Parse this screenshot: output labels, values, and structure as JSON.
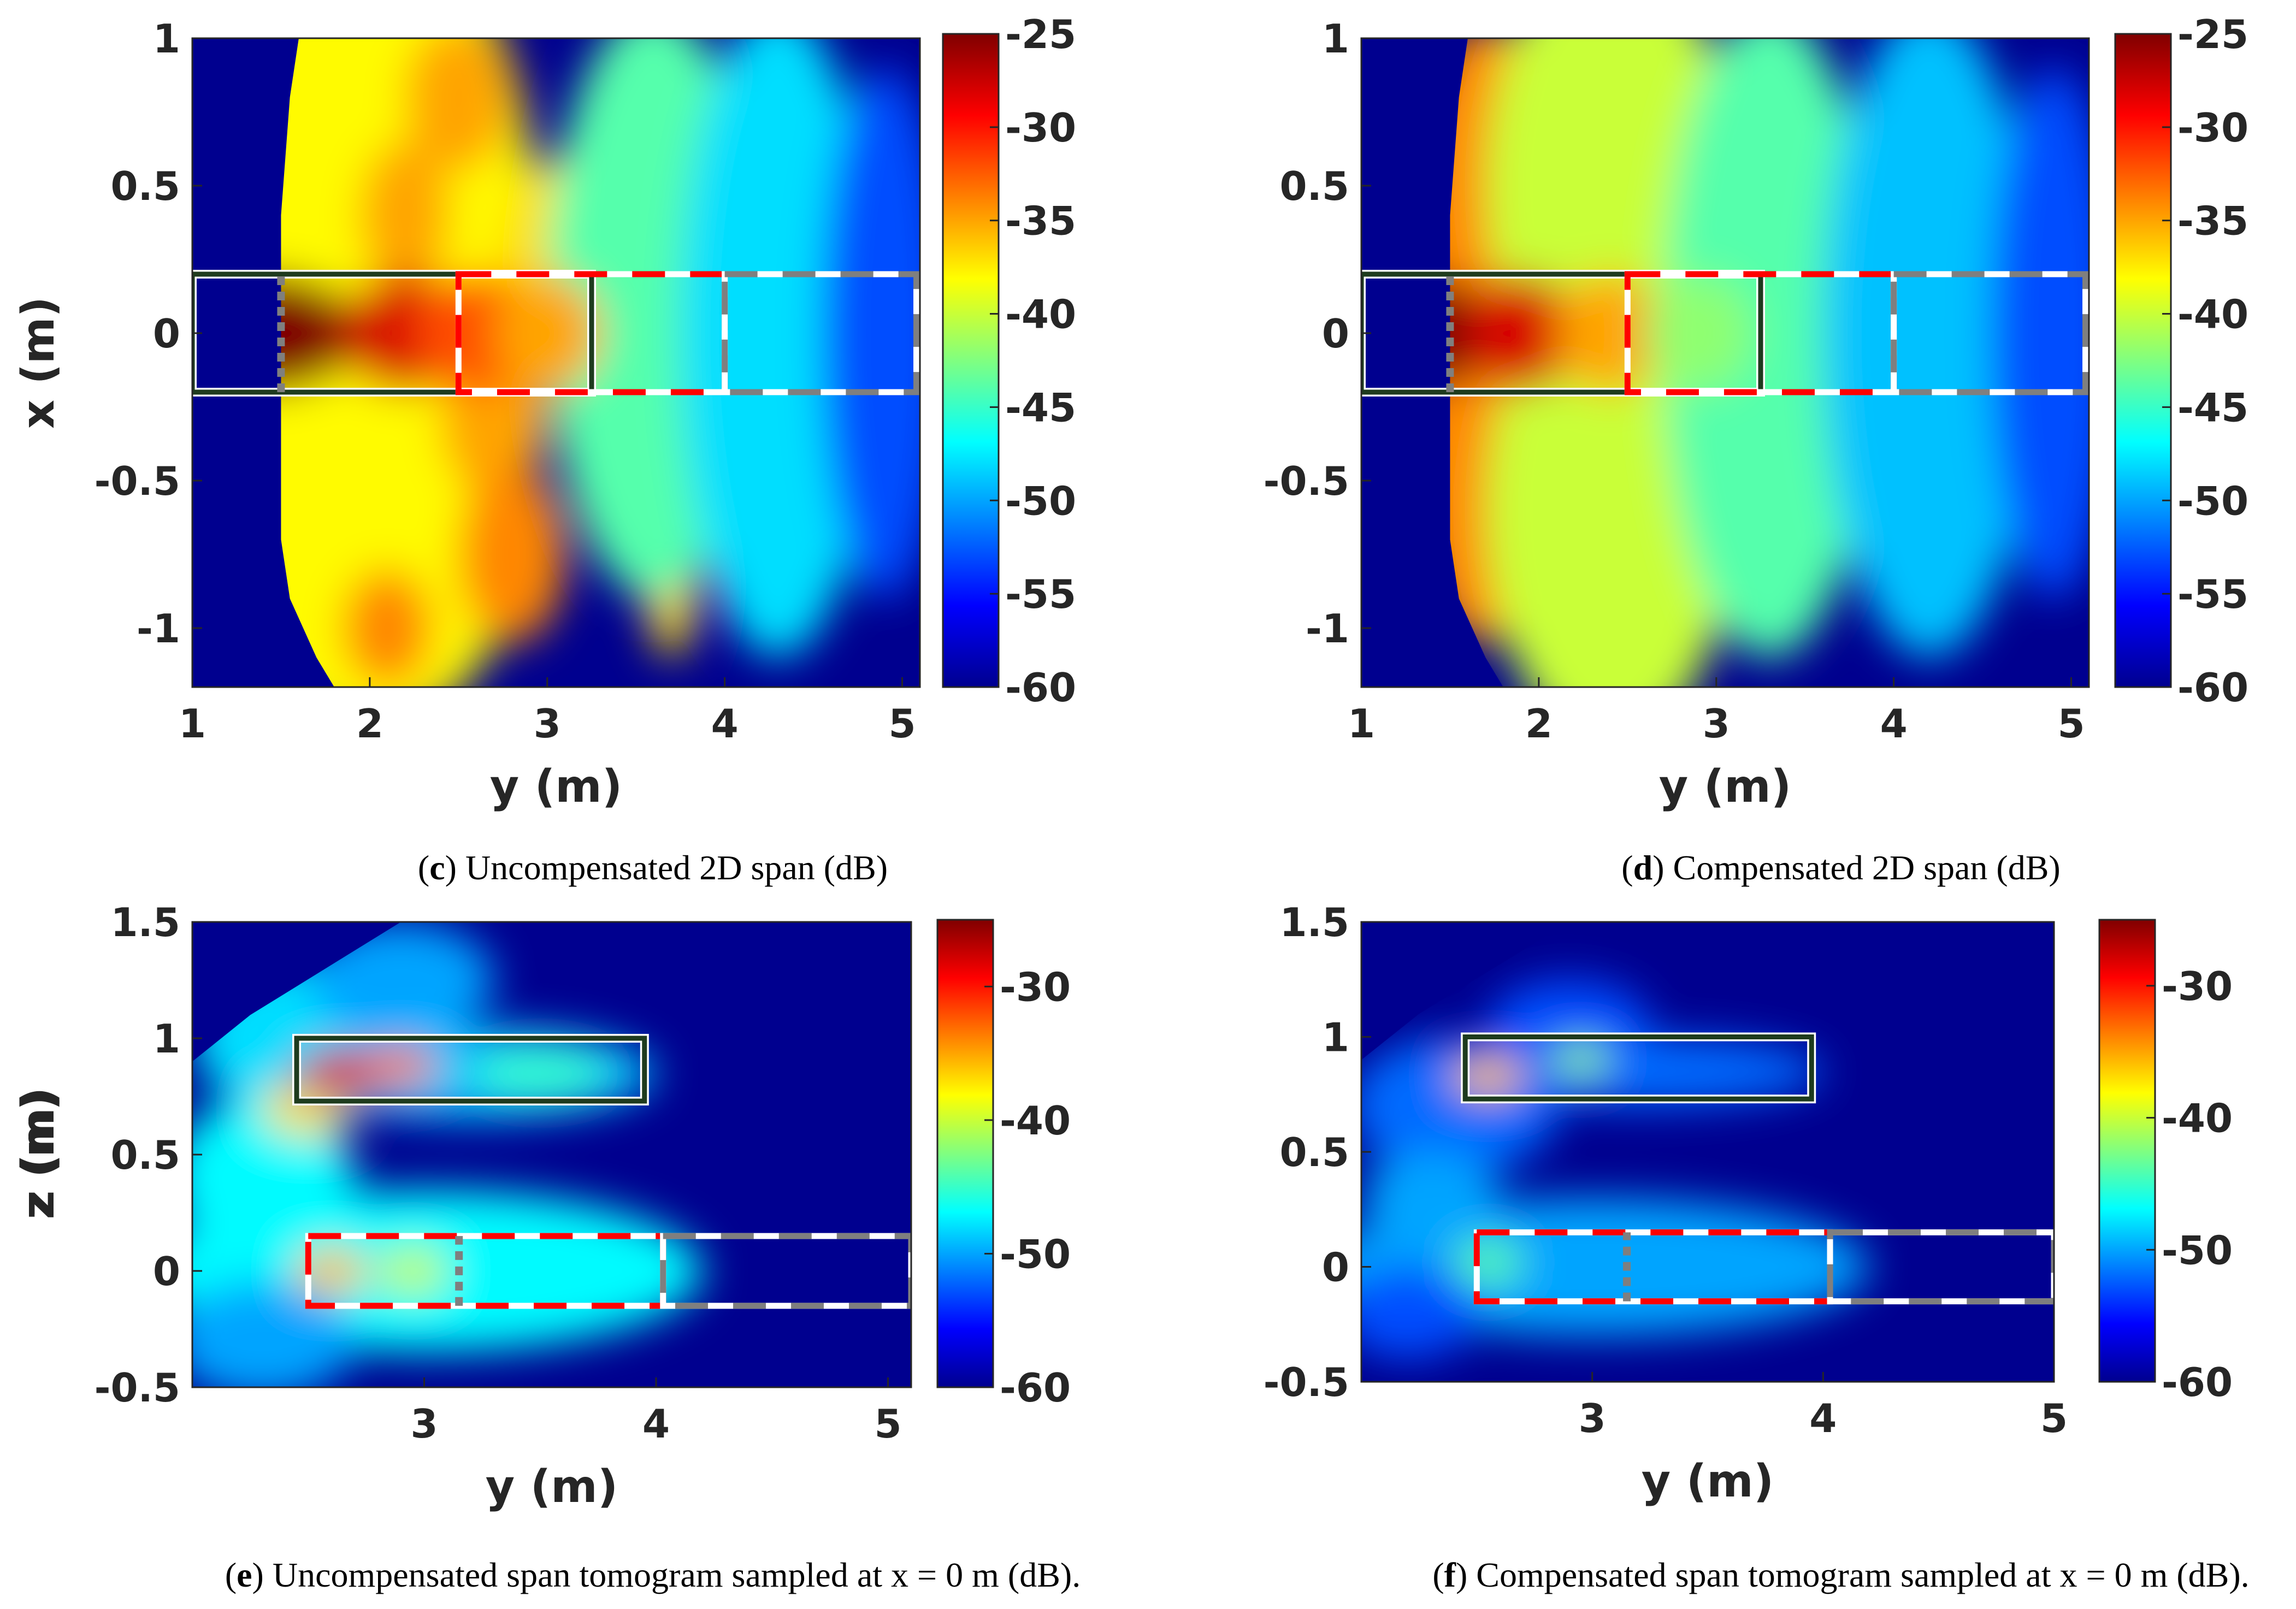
{
  "colormap": {
    "name": "jet",
    "stops": [
      "#00008f",
      "#0000ff",
      "#0080ff",
      "#00ffff",
      "#80ff80",
      "#ffff00",
      "#ff8000",
      "#ff0000",
      "#800000"
    ]
  },
  "box_colors": {
    "solid_outer": "#1e3b1e",
    "solid_inner": "#ffffff",
    "dash_red": "#ff0000",
    "dash_gray": "#7f7f7f",
    "dash_white": "#ffffff"
  },
  "chart_data": [
    {
      "id": "c",
      "type": "heatmap",
      "caption_label": "c",
      "caption_text": " Uncompensated 2D span (dB)",
      "xlabel": "y (m)",
      "ylabel": "x (m)",
      "xlim": [
        1,
        5.1
      ],
      "ylim": [
        -1.2,
        1
      ],
      "xticks": [
        "1",
        "2",
        "3",
        "4",
        "5"
      ],
      "yticks": [
        "1",
        "0.5",
        "0",
        "-0.5",
        "-1"
      ],
      "cb_range": [
        -60,
        -25
      ],
      "cb_ticks": [
        "-25",
        "-30",
        "-35",
        "-40",
        "-45",
        "-50",
        "-55",
        "-60"
      ],
      "background_db": -60,
      "fan": [
        [
          1.6,
          1
        ],
        [
          1.55,
          0.8
        ],
        [
          1.5,
          0.4
        ],
        [
          1.5,
          -0.6
        ],
        [
          1.5,
          -0.7
        ],
        [
          1.55,
          -0.9
        ],
        [
          1.7,
          -1.1
        ],
        [
          1.8,
          -1.2
        ],
        [
          5.1,
          -1.2
        ],
        [
          5.1,
          1
        ],
        [
          1.9,
          1
        ]
      ],
      "blobs": [
        {
          "y": 1.0,
          "x": 0,
          "ry": 0.05,
          "rx": 0.05,
          "db": -38
        },
        {
          "y": 2.0,
          "x": 0.55,
          "ry": 0.9,
          "rx": 0.8,
          "db": -38
        },
        {
          "y": 2.0,
          "x": -0.55,
          "ry": 0.9,
          "rx": 0.8,
          "db": -38
        },
        {
          "y": 2.5,
          "x": 0.8,
          "ry": 0.3,
          "rx": 0.25,
          "db": -35
        },
        {
          "y": 2.2,
          "x": 0.4,
          "ry": 0.25,
          "rx": 0.25,
          "db": -35
        },
        {
          "y": 2.7,
          "x": -0.3,
          "ry": 0.3,
          "rx": 0.25,
          "db": -35
        },
        {
          "y": 2.8,
          "x": -0.75,
          "ry": 0.3,
          "rx": 0.3,
          "db": -34
        },
        {
          "y": 2.1,
          "x": -1.0,
          "ry": 0.25,
          "rx": 0.2,
          "db": -34
        },
        {
          "y": 3.7,
          "x": -0.8,
          "ry": 0.15,
          "rx": 0.3,
          "db": -37
        },
        {
          "y": 3.1,
          "x": 0.2,
          "ry": 0.4,
          "rx": 0.4,
          "db": -37
        },
        {
          "y": 3.6,
          "x": 0.1,
          "ry": 0.6,
          "rx": 1.0,
          "db": -44
        },
        {
          "y": 4.3,
          "x": 0,
          "ry": 0.55,
          "rx": 1.1,
          "db": -48
        },
        {
          "y": 4.9,
          "x": 0,
          "ry": 0.35,
          "rx": 0.9,
          "db": -53
        },
        {
          "y": 1.4,
          "x": 0,
          "ry": 0.55,
          "rx": 0.2,
          "db": -25
        },
        {
          "y": 2.2,
          "x": 0,
          "ry": 0.35,
          "rx": 0.2,
          "db": -28
        },
        {
          "y": 2.6,
          "x": 0,
          "ry": 0.35,
          "rx": 0.2,
          "db": -32
        },
        {
          "y": 3.0,
          "x": 0,
          "ry": 0.3,
          "rx": 0.2,
          "db": -35
        }
      ],
      "boxes": [
        {
          "kind": "solid",
          "y0": 1.0,
          "y1": 3.25,
          "x0": -0.2,
          "x1": 0.2
        },
        {
          "kind": "red",
          "y0": 2.5,
          "y1": 4.0,
          "x0": -0.2,
          "x1": 0.2
        },
        {
          "kind": "gray",
          "y0": 4.0,
          "y1": 5.08,
          "x0": -0.2,
          "x1": 0.2
        }
      ],
      "markers": [
        {
          "y": 1.5,
          "x0": -0.2,
          "x1": 0.2
        }
      ]
    },
    {
      "id": "d",
      "type": "heatmap",
      "caption_label": "d",
      "caption_text": " Compensated 2D span (dB)",
      "xlabel": "y (m)",
      "ylabel": "x (m)",
      "xlim": [
        1,
        5.1
      ],
      "ylim": [
        -1.2,
        1
      ],
      "xticks": [
        "1",
        "2",
        "3",
        "4",
        "5"
      ],
      "yticks": [
        "1",
        "0.5",
        "0",
        "-0.5",
        "-1"
      ],
      "cb_range": [
        -60,
        -25
      ],
      "cb_ticks": [
        "-25",
        "-30",
        "-35",
        "-40",
        "-45",
        "-50",
        "-55",
        "-60"
      ],
      "background_db": -60,
      "fan": [
        [
          1.6,
          1
        ],
        [
          1.55,
          0.8
        ],
        [
          1.5,
          0.4
        ],
        [
          1.5,
          -0.6
        ],
        [
          1.5,
          -0.7
        ],
        [
          1.55,
          -0.9
        ],
        [
          1.7,
          -1.1
        ],
        [
          1.8,
          -1.2
        ],
        [
          5.1,
          -1.2
        ],
        [
          5.1,
          1
        ],
        [
          1.9,
          1
        ]
      ],
      "blobs": [
        {
          "y": 1.7,
          "x": 0.45,
          "ry": 0.45,
          "rx": 0.6,
          "db": -34
        },
        {
          "y": 1.7,
          "x": -0.45,
          "ry": 0.45,
          "rx": 0.6,
          "db": -34
        },
        {
          "y": 2.4,
          "x": 0.5,
          "ry": 0.7,
          "rx": 0.8,
          "db": -40
        },
        {
          "y": 2.4,
          "x": -0.6,
          "ry": 0.7,
          "rx": 0.8,
          "db": -40
        },
        {
          "y": 3.3,
          "x": 0,
          "ry": 0.6,
          "rx": 1.1,
          "db": -44
        },
        {
          "y": 4.2,
          "x": 0,
          "ry": 0.6,
          "rx": 1.1,
          "db": -49
        },
        {
          "y": 4.9,
          "x": 0,
          "ry": 0.35,
          "rx": 0.9,
          "db": -53
        },
        {
          "y": 1.3,
          "x": 0,
          "ry": 0.45,
          "rx": 0.2,
          "db": -25
        },
        {
          "y": 1.9,
          "x": 0,
          "ry": 0.3,
          "rx": 0.2,
          "db": -28
        },
        {
          "y": 2.4,
          "x": 0,
          "ry": 0.3,
          "rx": 0.2,
          "db": -35
        },
        {
          "y": 2.9,
          "x": 0,
          "ry": 0.3,
          "rx": 0.2,
          "db": -42
        }
      ],
      "boxes": [
        {
          "kind": "solid",
          "y0": 1.0,
          "y1": 3.25,
          "x0": -0.2,
          "x1": 0.2
        },
        {
          "kind": "red",
          "y0": 2.5,
          "y1": 4.0,
          "x0": -0.2,
          "x1": 0.2
        },
        {
          "kind": "gray",
          "y0": 4.0,
          "y1": 5.08,
          "x0": -0.2,
          "x1": 0.2
        }
      ],
      "markers": [
        {
          "y": 1.5,
          "x0": -0.2,
          "x1": 0.2
        }
      ]
    },
    {
      "id": "e",
      "type": "heatmap",
      "caption_label": "e",
      "caption_text": ") Uncompensated span tomogram sampled at x = 0 m (dB).",
      "xlabel": "y (m)",
      "ylabel": "z (m)",
      "xlim": [
        2.0,
        5.1
      ],
      "ylim": [
        -0.5,
        1.5
      ],
      "xticks": [
        "3",
        "4",
        "5"
      ],
      "yticks": [
        "1.5",
        "1",
        "0.5",
        "0",
        "-0.5"
      ],
      "cb_range": [
        -60,
        -25
      ],
      "cb_ticks": [
        "-30",
        "-40",
        "-50",
        "-60"
      ],
      "background_db": -60,
      "fan": [
        [
          2.0,
          -0.5
        ],
        [
          2.0,
          0.9
        ],
        [
          2.25,
          1.1
        ],
        [
          2.9,
          1.5
        ],
        [
          5.1,
          1.5
        ],
        [
          5.1,
          -0.5
        ]
      ],
      "blobs": [
        {
          "y": 2.5,
          "x": 1.0,
          "ry": 0.5,
          "rx": 0.35,
          "db": -48
        },
        {
          "y": 2.9,
          "x": 1.25,
          "ry": 0.4,
          "rx": 0.25,
          "db": -50
        },
        {
          "y": 2.3,
          "x": 0.4,
          "ry": 0.4,
          "rx": 0.35,
          "db": -47
        },
        {
          "y": 2.5,
          "x": 0.7,
          "ry": 0.2,
          "rx": 0.12,
          "db": -37
        },
        {
          "y": 3.2,
          "x": 0.85,
          "ry": 0.8,
          "rx": 0.2,
          "db": -49
        },
        {
          "y": 2.65,
          "x": 0.85,
          "ry": 0.2,
          "rx": 0.1,
          "db": -28
        },
        {
          "y": 2.9,
          "x": 0.88,
          "ry": 0.15,
          "rx": 0.08,
          "db": -33
        },
        {
          "y": 3.5,
          "x": 0.85,
          "ry": 0.3,
          "rx": 0.1,
          "db": -45
        },
        {
          "y": 3.0,
          "x": 0.0,
          "ry": 1.2,
          "rx": 0.35,
          "db": -47
        },
        {
          "y": 2.6,
          "x": 0.0,
          "ry": 0.15,
          "rx": 0.1,
          "db": -36
        },
        {
          "y": 2.95,
          "x": 0.0,
          "ry": 0.15,
          "rx": 0.1,
          "db": -40
        },
        {
          "y": 2.3,
          "x": -0.3,
          "ry": 0.4,
          "rx": 0.25,
          "db": -50
        }
      ],
      "boxes": [
        {
          "kind": "solid",
          "y0": 2.45,
          "y1": 3.95,
          "x0": 0.73,
          "x1": 1.0
        },
        {
          "kind": "red",
          "y0": 2.5,
          "y1": 4.03,
          "x0": -0.15,
          "x1": 0.15
        },
        {
          "kind": "gray",
          "y0": 4.03,
          "y1": 5.1,
          "x0": -0.15,
          "x1": 0.15
        }
      ],
      "markers": [
        {
          "y": 3.15,
          "x0": -0.15,
          "x1": 0.15
        }
      ]
    },
    {
      "id": "f",
      "type": "heatmap",
      "caption_label": "f",
      "caption_text": ") Compensated span tomogram sampled at x = 0 m (dB).",
      "xlabel": "y (m)",
      "ylabel": "z (m)",
      "xlim": [
        2.0,
        5.0
      ],
      "ylim": [
        -0.5,
        1.5
      ],
      "xticks": [
        "3",
        "4",
        "5"
      ],
      "yticks": [
        "1.5",
        "1",
        "0.5",
        "0",
        "-0.5"
      ],
      "cb_range": [
        -60,
        -25
      ],
      "cb_ticks": [
        "-30",
        "-40",
        "-50",
        "-60"
      ],
      "background_db": -60,
      "fan": [
        [
          2.0,
          -0.5
        ],
        [
          2.0,
          0.9
        ],
        [
          2.25,
          1.1
        ],
        [
          2.9,
          1.5
        ],
        [
          5.0,
          1.5
        ],
        [
          5.0,
          -0.5
        ]
      ],
      "blobs": [
        {
          "y": 2.4,
          "x": 0.7,
          "ry": 0.45,
          "rx": 0.3,
          "db": -52
        },
        {
          "y": 2.9,
          "x": 1.05,
          "ry": 0.35,
          "rx": 0.2,
          "db": -53
        },
        {
          "y": 3.2,
          "x": 0.85,
          "ry": 0.8,
          "rx": 0.15,
          "db": -52
        },
        {
          "y": 2.55,
          "x": 0.83,
          "ry": 0.15,
          "rx": 0.08,
          "db": -36
        },
        {
          "y": 2.95,
          "x": 0.9,
          "ry": 0.12,
          "rx": 0.07,
          "db": -42
        },
        {
          "y": 3.0,
          "x": 0.0,
          "ry": 1.2,
          "rx": 0.3,
          "db": -50
        },
        {
          "y": 2.55,
          "x": 0.02,
          "ry": 0.15,
          "rx": 0.1,
          "db": -44
        },
        {
          "y": 2.3,
          "x": 0.3,
          "ry": 0.3,
          "rx": 0.2,
          "db": -50
        },
        {
          "y": 2.2,
          "x": -0.2,
          "ry": 0.3,
          "rx": 0.2,
          "db": -53
        }
      ],
      "boxes": [
        {
          "kind": "solid",
          "y0": 2.45,
          "y1": 3.95,
          "x0": 0.73,
          "x1": 1.0
        },
        {
          "kind": "red",
          "y0": 2.5,
          "y1": 4.03,
          "x0": -0.15,
          "x1": 0.15
        },
        {
          "kind": "gray",
          "y0": 4.03,
          "y1": 5.0,
          "x0": -0.15,
          "x1": 0.15
        }
      ],
      "markers": [
        {
          "y": 3.15,
          "x0": -0.15,
          "x1": 0.15
        }
      ]
    }
  ]
}
